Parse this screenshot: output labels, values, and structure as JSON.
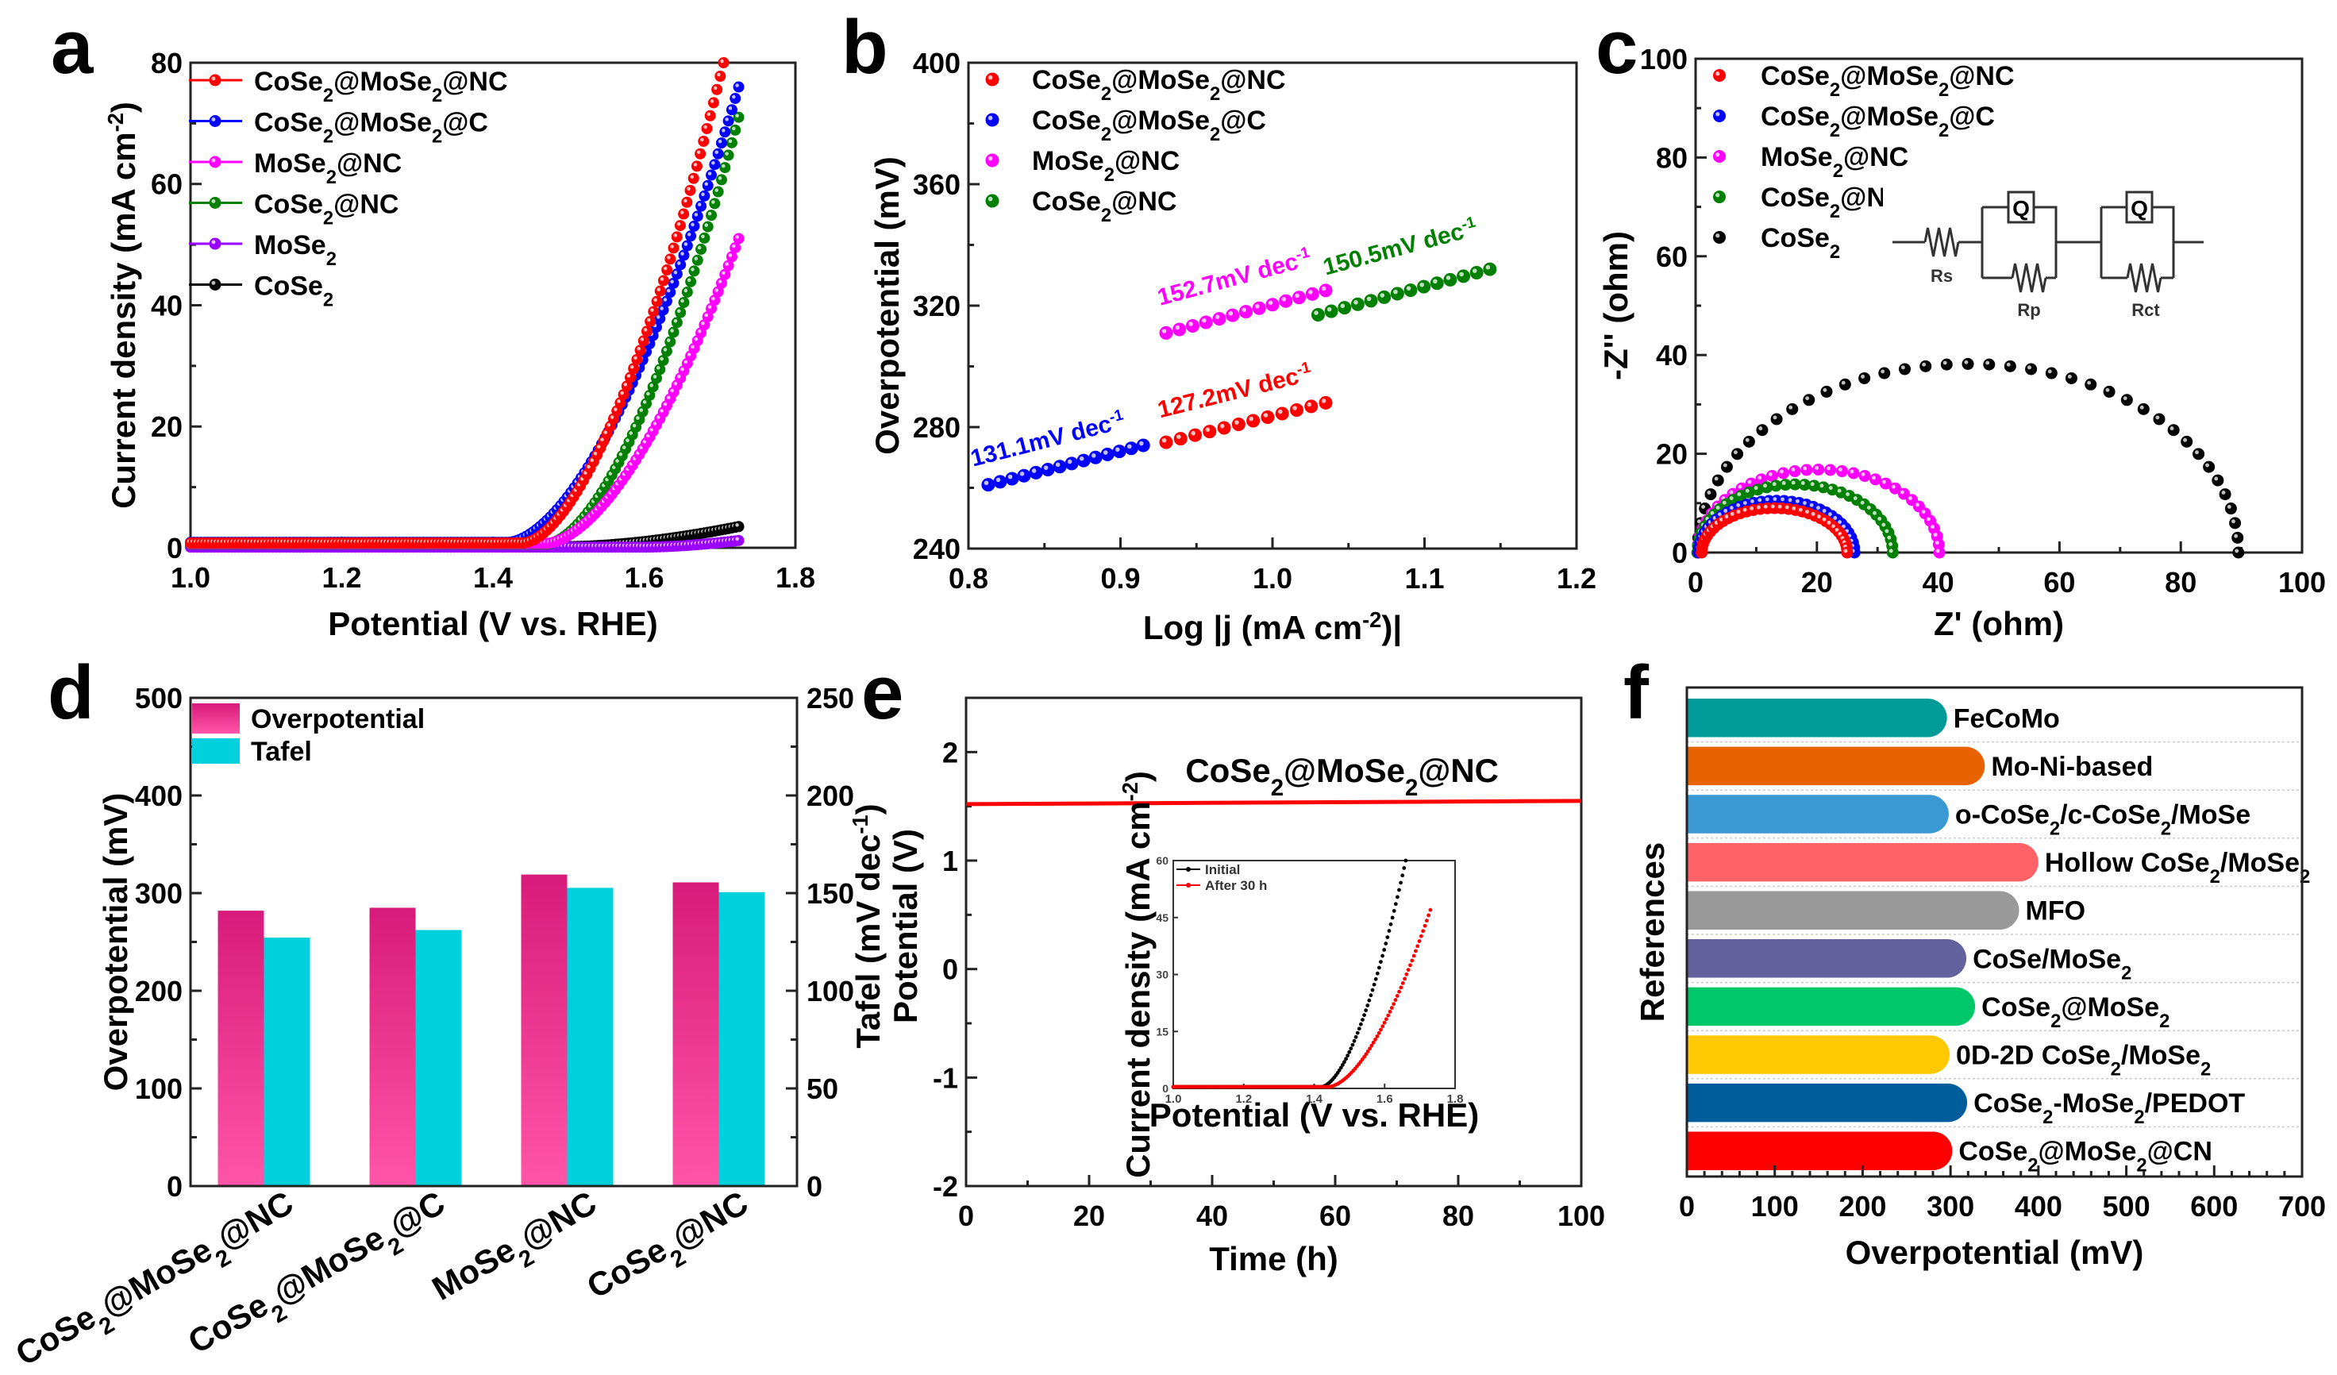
{
  "chart_data": [
    {
      "panel": "a",
      "type": "scatter",
      "title": "",
      "xlabel": "Potential (V vs. RHE)",
      "ylabel": "Current density (mA cm^-2)",
      "xlim": [
        1.0,
        1.8
      ],
      "ylim": [
        0,
        80
      ],
      "xticks": [
        1.0,
        1.2,
        1.4,
        1.6,
        1.8
      ],
      "yticks": [
        0,
        20,
        40,
        60,
        80
      ],
      "legend_position": "top-left",
      "series": [
        {
          "name": "CoSe2@MoSe2@NC",
          "color": "#ff0000",
          "onset": 1.44,
          "x_end": 1.705,
          "y_end": 80,
          "baseline": 0.8
        },
        {
          "name": "CoSe2@MoSe2@C",
          "color": "#0000ff",
          "onset": 1.42,
          "x_end": 1.725,
          "y_end": 76,
          "baseline": 0.9
        },
        {
          "name": "MoSe2@NC",
          "color": "#ff00ff",
          "onset": 1.47,
          "x_end": 1.725,
          "y_end": 51,
          "baseline": 0.7
        },
        {
          "name": "CoSe2@NC",
          "color": "#008000",
          "onset": 1.47,
          "x_end": 1.725,
          "y_end": 71,
          "baseline": 0.6
        },
        {
          "name": "MoSe2",
          "color": "#9900ff",
          "onset": 1.6,
          "x_end": 1.725,
          "y_end": 1.2,
          "baseline": 0.1
        },
        {
          "name": "CoSe2",
          "color": "#000000",
          "onset": 1.5,
          "x_end": 1.725,
          "y_end": 3.5,
          "baseline": 0.2
        }
      ]
    },
    {
      "panel": "b",
      "type": "scatter",
      "title": "",
      "xlabel": "Log |j (mA cm^-2)|",
      "ylabel": "Overpotential (mV)",
      "xlim": [
        0.8,
        1.2
      ],
      "ylim": [
        240,
        400
      ],
      "xticks": [
        0.8,
        0.9,
        1.0,
        1.1,
        1.2
      ],
      "yticks": [
        240,
        280,
        320,
        360,
        400
      ],
      "legend_position": "top-left",
      "series": [
        {
          "name": "CoSe2@MoSe2@NC",
          "color": "#ff0000",
          "x_start": 0.93,
          "x_end": 1.035,
          "y_start": 275,
          "y_end": 288,
          "points": 12,
          "annotation": "127.2mV dec-1"
        },
        {
          "name": "CoSe2@MoSe2@C",
          "color": "#0000ff",
          "x_start": 0.813,
          "x_end": 0.915,
          "y_start": 261,
          "y_end": 274,
          "points": 14,
          "annotation": "131.1mV dec-1"
        },
        {
          "name": "MoSe2@NC",
          "color": "#ff00ff",
          "x_start": 0.93,
          "x_end": 1.035,
          "y_start": 311,
          "y_end": 325,
          "points": 13,
          "annotation": "152.7mV dec-1"
        },
        {
          "name": "CoSe2@NC",
          "color": "#008000",
          "x_start": 1.03,
          "x_end": 1.143,
          "y_start": 317,
          "y_end": 332,
          "points": 14,
          "annotation": "150.5mV dec-1"
        }
      ]
    },
    {
      "panel": "c",
      "type": "scatter",
      "title": "",
      "xlabel": "Z' (ohm)",
      "ylabel": "-Z'' (ohm)",
      "xlim": [
        0,
        100
      ],
      "ylim": [
        0,
        100
      ],
      "xticks": [
        0,
        20,
        40,
        60,
        80,
        100
      ],
      "yticks": [
        0,
        20,
        40,
        60,
        80,
        100
      ],
      "legend_position": "top-left",
      "inset": {
        "type": "equivalent-circuit",
        "labels": [
          "Rs",
          "Q",
          "Rp",
          "Q",
          "Rct"
        ]
      },
      "series": [
        {
          "name": "CoSe2@MoSe2@NC",
          "color": "#ff0000",
          "z_start": 1.0,
          "z_end": 25.0,
          "peak": 9.0
        },
        {
          "name": "CoSe2@MoSe2@C",
          "color": "#0000ff",
          "z_start": 0.5,
          "z_end": 26.2,
          "peak": 10.5
        },
        {
          "name": "MoSe2@NC",
          "color": "#ff00ff",
          "z_start": 0.3,
          "z_end": 40.2,
          "peak": 16.8
        },
        {
          "name": "CoSe2@NC",
          "color": "#008000",
          "z_start": 0.3,
          "z_end": 32.5,
          "peak": 13.8
        },
        {
          "name": "CoSe2",
          "color": "#000000",
          "z_start": 0.3,
          "z_end": 89.5,
          "peak": 38.2
        }
      ]
    },
    {
      "panel": "d",
      "type": "bar",
      "title": "",
      "xlabel": "",
      "ylabel": "Overpotential (mV)",
      "y2label": "Tafel (mV dec-1)",
      "ylim": [
        0,
        500
      ],
      "y2lim": [
        0,
        250
      ],
      "yticks": [
        0,
        100,
        200,
        300,
        400,
        500
      ],
      "y2ticks": [
        0,
        50,
        100,
        150,
        200,
        250
      ],
      "categories": [
        "CoSe2@MoSe2@NC",
        "CoSe2@MoSe2@C",
        "MoSe2@NC",
        "CoSe2@NC"
      ],
      "legend_position": "top-left",
      "series": [
        {
          "name": "Overpotential",
          "axis": "left",
          "color_top": "#d81b7a",
          "color_bottom": "#ff55a8",
          "values": [
            282,
            285,
            319,
            311
          ]
        },
        {
          "name": "Tafel",
          "axis": "right",
          "color": "#00d1dc",
          "values": [
            127.2,
            131.1,
            152.7,
            150.5
          ]
        }
      ]
    },
    {
      "panel": "e",
      "type": "line",
      "title": "",
      "xlabel": "Time (h)",
      "ylabel": "Potential (V)",
      "xlim": [
        0,
        100
      ],
      "ylim": [
        -2,
        2.5
      ],
      "xticks": [
        0,
        20,
        40,
        60,
        80,
        100
      ],
      "yticks": [
        -2,
        -1,
        0,
        1,
        2
      ],
      "series": [
        {
          "name": "CoSe2@MoSe2@NC",
          "color": "#ff0000",
          "x": [
            0,
            100
          ],
          "y": [
            1.52,
            1.55
          ]
        }
      ],
      "annotation": "CoSe2@MoSe2@NC",
      "inset": {
        "type": "scatter",
        "xlabel": "Potential (V vs. RHE)",
        "ylabel": "Current density (mA cm^-2)",
        "xlim": [
          1.0,
          1.8
        ],
        "ylim": [
          0,
          60
        ],
        "xticks": [
          1.0,
          1.2,
          1.4,
          1.6,
          1.8
        ],
        "yticks": [
          0,
          15,
          30,
          45,
          60
        ],
        "legend_position": "top-left",
        "series": [
          {
            "name": "Initial",
            "color": "#000000",
            "onset": 1.42,
            "x_end": 1.66,
            "y_end": 60
          },
          {
            "name": "After 30 h",
            "color": "#ff0000",
            "onset": 1.44,
            "x_end": 1.73,
            "y_end": 47
          }
        ]
      }
    },
    {
      "panel": "f",
      "type": "bar",
      "orientation": "horizontal",
      "title": "",
      "xlabel": "Overpotential (mV)",
      "ylabel": "References",
      "xlim": [
        0,
        700
      ],
      "xticks": [
        0,
        100,
        200,
        300,
        400,
        500,
        600,
        700
      ],
      "categories": [
        "FeCoMo",
        "Mo-Ni-based",
        "o-CoSe2/c-CoSe2/MoSe",
        "Hollow CoSe2/MoSe2",
        "MFO",
        "CoSe/MoSe2",
        "CoSe2@MoSe2",
        "0D-2D CoSe2/MoSe2",
        "CoSe2-MoSe2/PEDOT",
        "CoSe2@MoSe2@CN"
      ],
      "values": [
        296,
        339,
        298,
        400,
        378,
        318,
        328,
        299,
        319,
        302
      ],
      "colors": [
        "#009b99",
        "#e86300",
        "#3a98d3",
        "#ff6266",
        "#999999",
        "#63609e",
        "#00c86a",
        "#ffc800",
        "#005d9c",
        "#ff0000"
      ]
    }
  ],
  "panel_labels": [
    "a",
    "b",
    "c",
    "d",
    "e",
    "f"
  ]
}
